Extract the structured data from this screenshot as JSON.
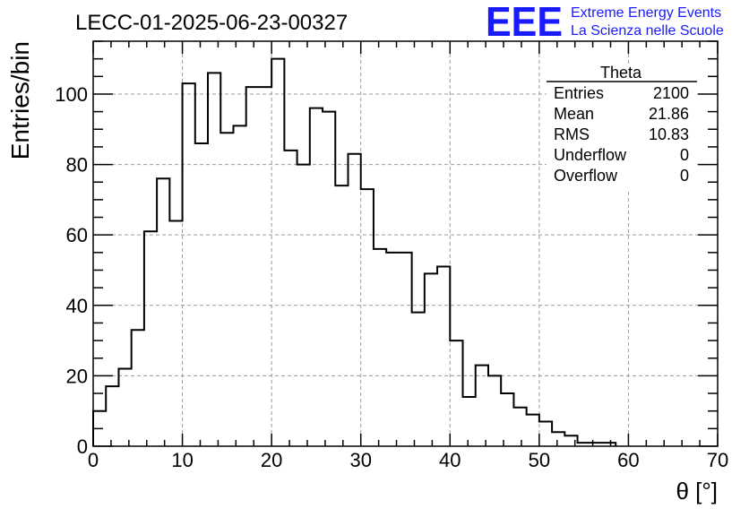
{
  "chart_data": {
    "type": "bar",
    "histogram": true,
    "title": "LECC-01-2025-06-23-00327",
    "xlabel": "θ [°]",
    "ylabel": "Entries/bin",
    "xlim": [
      0,
      70
    ],
    "ylim": [
      0,
      115
    ],
    "grid": true,
    "bin_width": 1.4286,
    "values": [
      10,
      17,
      22,
      33,
      61,
      76,
      64,
      103,
      86,
      106,
      89,
      91,
      102,
      102,
      110,
      84,
      80,
      96,
      95,
      74,
      83,
      73,
      56,
      55,
      55,
      38,
      49,
      51,
      30,
      14,
      23,
      20,
      15,
      11,
      9,
      7,
      4,
      3,
      1,
      1,
      1,
      0,
      0,
      0,
      0,
      0,
      0,
      0,
      0
    ],
    "x_ticks": [
      "0",
      "10",
      "20",
      "30",
      "40",
      "50",
      "60",
      "70"
    ],
    "y_ticks": [
      "0",
      "20",
      "40",
      "60",
      "80",
      "100"
    ],
    "stats_box": {
      "title": "Theta",
      "rows": [
        {
          "label": "Entries",
          "value": "2100"
        },
        {
          "label": "Mean",
          "value": "21.86"
        },
        {
          "label": "RMS",
          "value": "10.83"
        },
        {
          "label": "Underflow",
          "value": "0"
        },
        {
          "label": "Overflow",
          "value": "0"
        }
      ]
    },
    "logo": {
      "text": "EEE",
      "line1": "Extreme Energy Events",
      "line2": "La Scienza nelle Scuole",
      "color": "#1a1aff"
    }
  }
}
